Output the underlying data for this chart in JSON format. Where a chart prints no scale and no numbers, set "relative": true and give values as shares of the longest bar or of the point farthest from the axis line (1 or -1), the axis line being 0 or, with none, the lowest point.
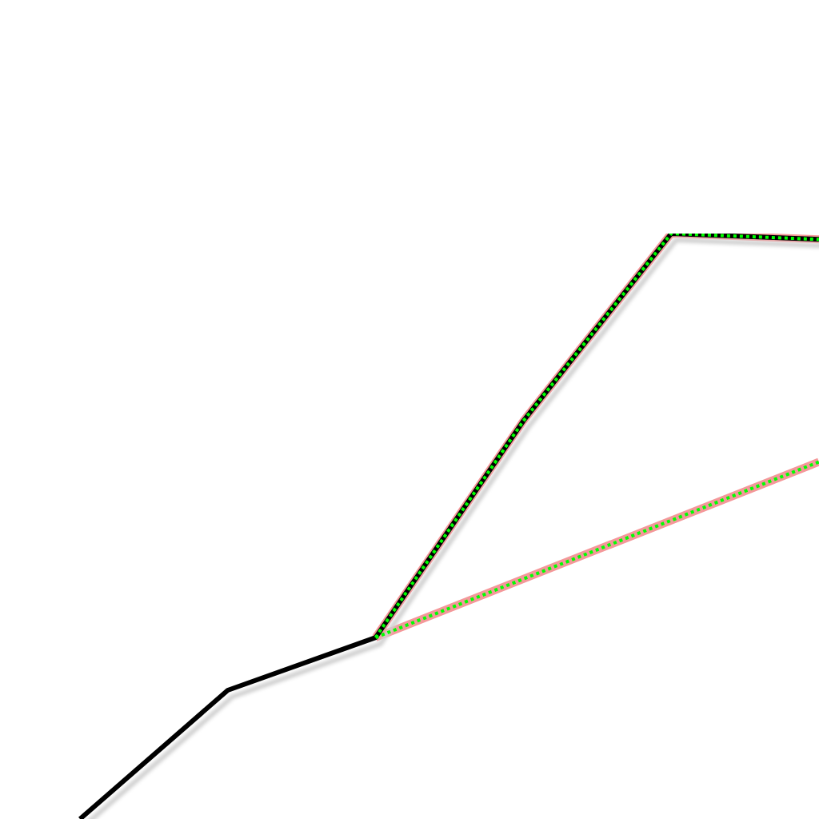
{
  "chart_data": {
    "type": "line",
    "relative": true,
    "marker": "none",
    "categories": [
      null,
      null,
      null,
      null,
      null,
      null
    ],
    "series": [
      {
        "color": "#f4989a",
        "line_style": "solid",
        "values": [
          null,
          null,
          0.31,
          0.68,
          1,
          0.99
        ]
      },
      {
        "color": "#f4989a",
        "line_style": "solid",
        "values": [
          null,
          null,
          0.31,
          null,
          null,
          0.61
        ]
      },
      {
        "color": "#000000",
        "line_style": "solid",
        "values": [
          0,
          0.22,
          0.31,
          0.68,
          1,
          0.99
        ]
      },
      {
        "color": "#00ff00",
        "line_style": "dotted",
        "values": [
          null,
          null,
          0.31,
          0.68,
          1,
          0.99
        ]
      },
      {
        "color": "#00ff00",
        "line_style": "dotted",
        "values": [
          null,
          null,
          0.31,
          null,
          null,
          0.61
        ]
      }
    ]
  }
}
